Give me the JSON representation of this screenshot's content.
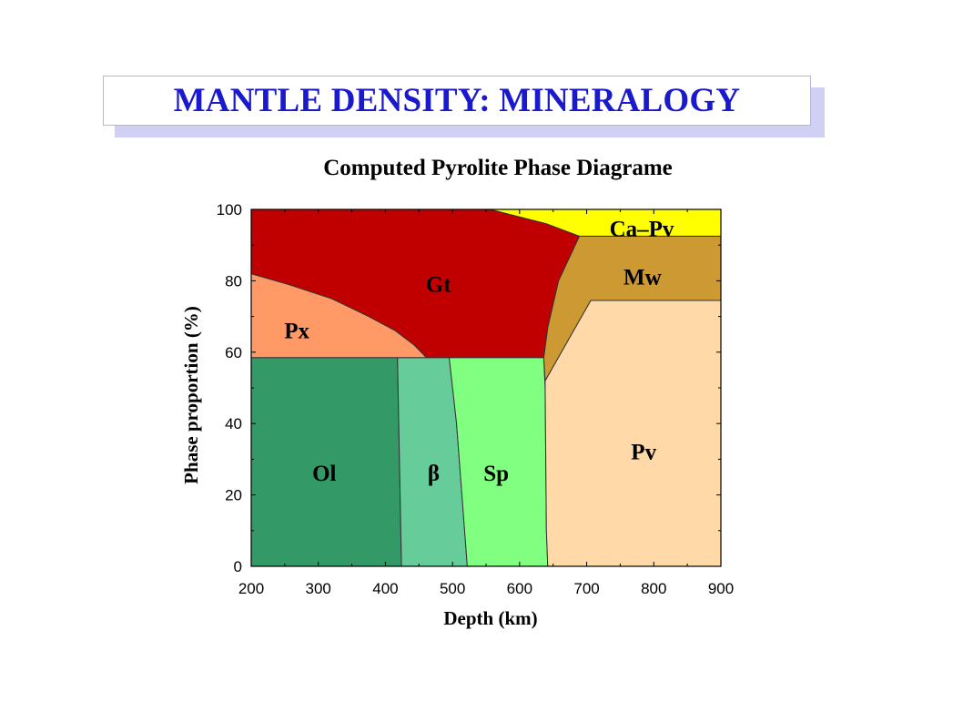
{
  "slide": {
    "title": "MANTLE DENSITY: MINERALOGY"
  },
  "chart_data": {
    "type": "area",
    "title": "Computed Pyrolite Phase Diagrame",
    "xlabel": "Depth  (km)",
    "ylabel": "Phase proportion  (%)",
    "xlim": [
      200,
      900
    ],
    "ylim": [
      0,
      100
    ],
    "xticks": [
      "200",
      "300",
      "400",
      "500",
      "600",
      "700",
      "800",
      "900"
    ],
    "yticks": [
      "0",
      "20",
      "40",
      "60",
      "80",
      "100"
    ],
    "grid": false,
    "regions": [
      {
        "name": "Ol",
        "label": "Ol",
        "color": "#339966",
        "label_at": [
          309,
          26
        ],
        "polygon": [
          [
            200,
            0
          ],
          [
            424,
            0
          ],
          [
            418,
            58.5
          ],
          [
            200,
            58.5
          ]
        ]
      },
      {
        "name": "beta",
        "label": "β",
        "color": "#66cc99",
        "label_at": [
          472,
          26
        ],
        "polygon": [
          [
            424,
            0
          ],
          [
            522,
            0
          ],
          [
            506,
            40
          ],
          [
            495,
            58.5
          ],
          [
            418,
            58.5
          ]
        ]
      },
      {
        "name": "Sp",
        "label": "Sp",
        "color": "#80ff80",
        "label_at": [
          565,
          26
        ],
        "polygon": [
          [
            522,
            0
          ],
          [
            642,
            0
          ],
          [
            640,
            10
          ],
          [
            638,
            50
          ],
          [
            636,
            58.5
          ],
          [
            495,
            58.5
          ],
          [
            506,
            40
          ]
        ]
      },
      {
        "name": "Pv",
        "label": "Pv",
        "color": "#ffd9a8",
        "label_at": [
          785,
          32
        ],
        "polygon": [
          [
            642,
            0
          ],
          [
            900,
            0
          ],
          [
            900,
            74.5
          ],
          [
            706,
            74.5
          ],
          [
            638,
            52
          ],
          [
            640,
            10
          ]
        ]
      },
      {
        "name": "Mw",
        "label": "Mw",
        "color": "#cc9933",
        "label_at": [
          783,
          81
        ],
        "polygon": [
          [
            900,
            74.5
          ],
          [
            900,
            92.5
          ],
          [
            689,
            92.5
          ],
          [
            658,
            80
          ],
          [
            642,
            67
          ],
          [
            636,
            58.5
          ],
          [
            638,
            52
          ],
          [
            706,
            74.5
          ]
        ]
      },
      {
        "name": "Px",
        "label": "Px",
        "color": "#ff9966",
        "label_at": [
          268,
          66
        ],
        "polygon": [
          [
            200,
            58.5
          ],
          [
            200,
            82
          ],
          [
            255,
            79
          ],
          [
            320,
            75
          ],
          [
            375,
            70
          ],
          [
            415,
            66
          ],
          [
            443,
            62
          ],
          [
            461,
            58.5
          ]
        ]
      },
      {
        "name": "Gt",
        "label": "Gt",
        "color": "#c00000",
        "label_at": [
          479,
          79
        ],
        "polygon": [
          [
            200,
            82
          ],
          [
            200,
            100
          ],
          [
            556,
            100
          ],
          [
            640,
            96
          ],
          [
            689,
            92.5
          ],
          [
            658,
            80
          ],
          [
            642,
            67
          ],
          [
            636,
            58.5
          ],
          [
            461,
            58.5
          ],
          [
            443,
            62
          ],
          [
            415,
            66
          ],
          [
            375,
            70
          ],
          [
            320,
            75
          ],
          [
            255,
            79
          ]
        ]
      },
      {
        "name": "Ca-Pv",
        "label": "Ca–Pv",
        "color": "#ffff00",
        "label_at": [
          782,
          94.5
        ],
        "polygon": [
          [
            556,
            100
          ],
          [
            900,
            100
          ],
          [
            900,
            92.5
          ],
          [
            689,
            92.5
          ],
          [
            640,
            96
          ]
        ]
      }
    ]
  }
}
